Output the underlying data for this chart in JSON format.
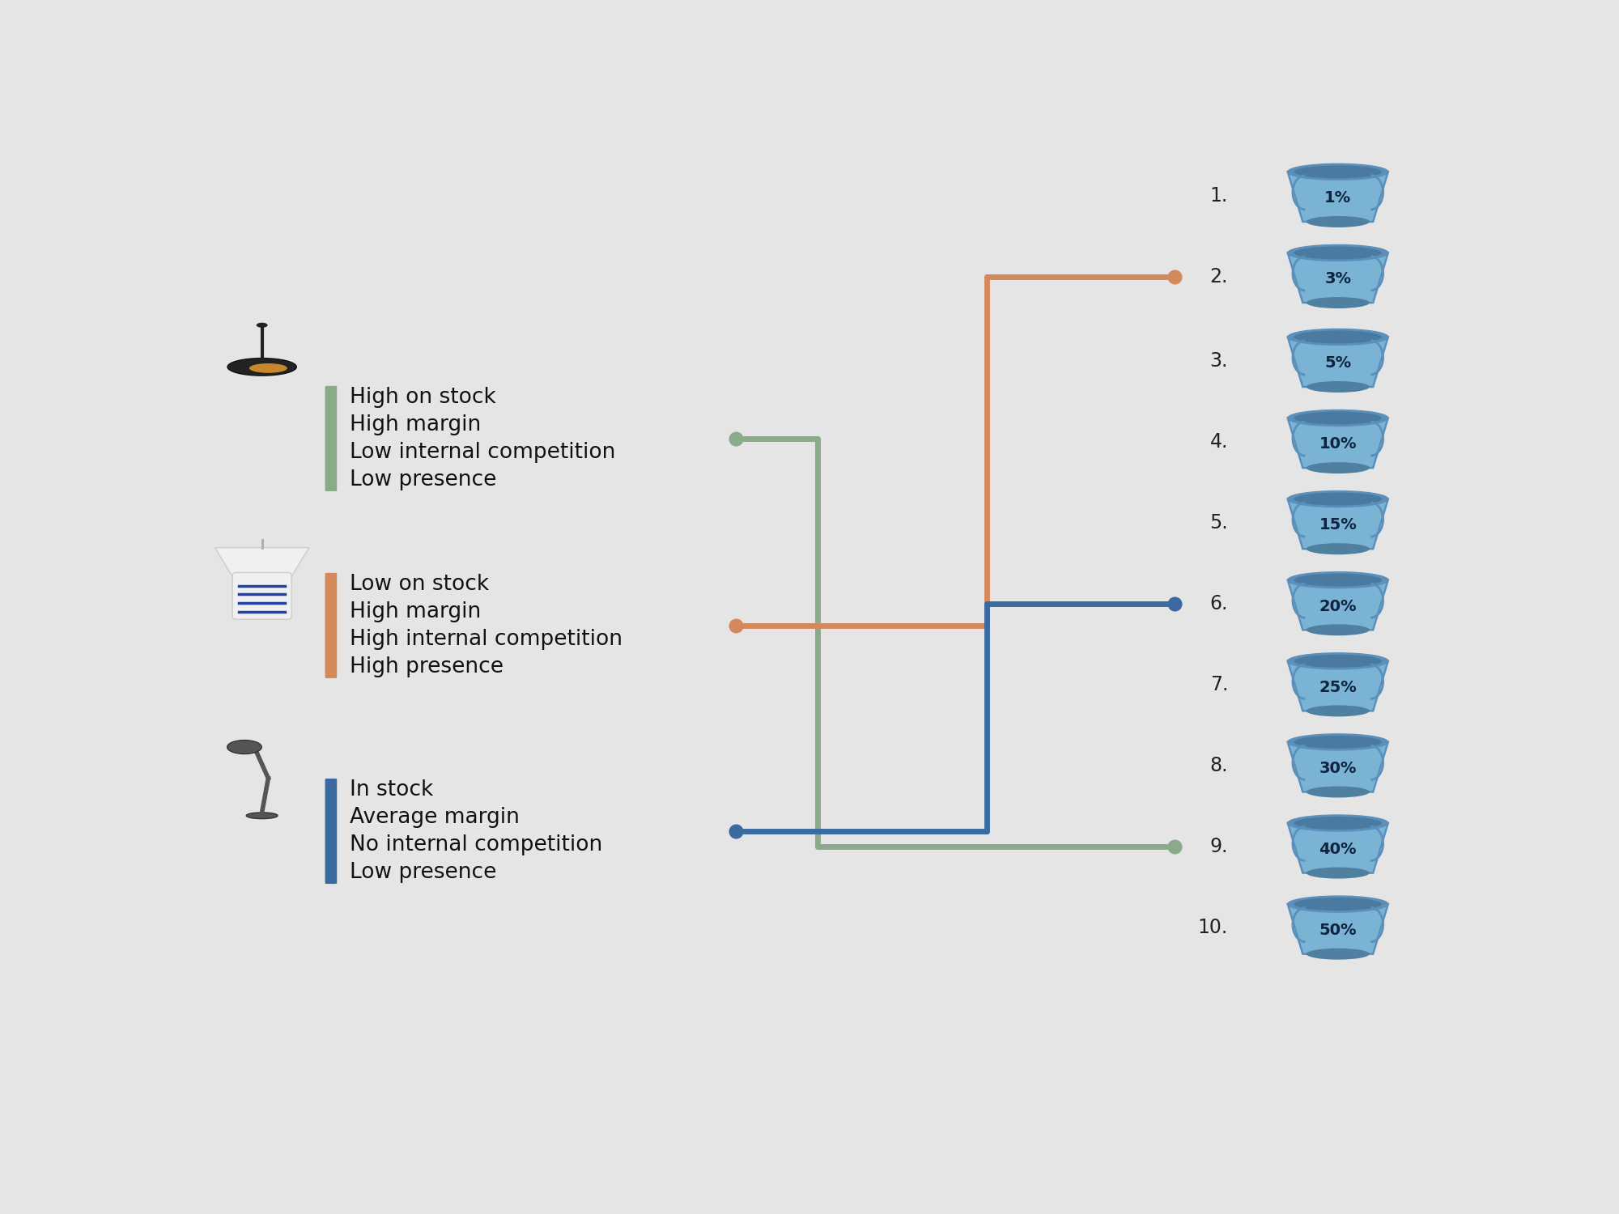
{
  "bg_color": "#e5e5e5",
  "bucket_body_color": "#7bb3d4",
  "bucket_rim_color": "#5a90bb",
  "bucket_rim_inner": "#4a7aa0",
  "bucket_handle_color": "#5a90bb",
  "bucket_labels": [
    "1%",
    "3%",
    "5%",
    "10%",
    "15%",
    "20%",
    "25%",
    "30%",
    "40%",
    "50%"
  ],
  "bucket_numbers": [
    "1.",
    "2.",
    "3.",
    "4.",
    "5.",
    "6.",
    "7.",
    "8.",
    "9.",
    "10."
  ],
  "line_colors": {
    "green": "#8aab8a",
    "orange": "#d4895a",
    "blue": "#3a6aa0"
  },
  "line_width": 5,
  "category_labels": [
    [
      "High on stock",
      "High margin",
      "Low internal competition",
      "Low presence"
    ],
    [
      "Low on stock",
      "High margin",
      "High internal competition",
      "High presence"
    ],
    [
      "In stock",
      "Average margin",
      "No internal competition",
      "Low presence"
    ]
  ],
  "category_bar_colors": [
    "#8aab8a",
    "#d4895a",
    "#3a6aa0"
  ],
  "label_fontsize": 19
}
